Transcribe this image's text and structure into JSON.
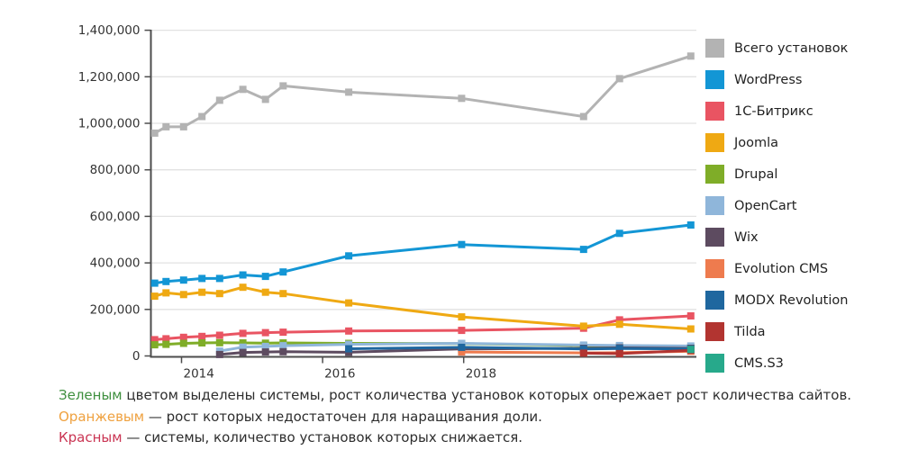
{
  "chart_data": {
    "type": "line",
    "title": "",
    "xlabel": "",
    "ylabel": "",
    "y_max": 1400000,
    "y_tick_values": [
      0,
      200000,
      400000,
      600000,
      800000,
      1000000,
      1200000,
      1400000
    ],
    "y_tick_labels": [
      "0",
      "200,000",
      "400,000",
      "600,000",
      "800,000",
      "1,000,000",
      "1,200,000",
      "1,400,000"
    ],
    "x_tick_years": [
      2014,
      2016,
      2018
    ],
    "x_tick_labels": [
      "2014",
      "2016",
      "2018"
    ],
    "x_years": [
      2013.62,
      2013.78,
      2014.03,
      2014.29,
      2014.54,
      2014.87,
      2015.19,
      2015.44,
      2016.37,
      2017.97,
      2019.7,
      2020.21,
      2021.22
    ],
    "grid": "horizontal",
    "legend_position": "right",
    "series": [
      {
        "label": "Всего установок",
        "color": "#b3b3b3",
        "start_index": 0,
        "values": [
          958000,
          985000,
          985000,
          1029000,
          1099000,
          1146000,
          1103000,
          1161000,
          1134000,
          1107000,
          1029000,
          1192000,
          1289000
        ]
      },
      {
        "label": "WordPress",
        "color": "#1396d5",
        "start_index": 0,
        "values": [
          313000,
          320000,
          326000,
          333000,
          333000,
          348000,
          342000,
          361000,
          430000,
          479000,
          458000,
          527000,
          563000
        ]
      },
      {
        "label": "1С-Битрикс",
        "color": "#e95462",
        "start_index": 0,
        "values": [
          70000,
          74000,
          80000,
          84000,
          89000,
          97000,
          100000,
          102000,
          107000,
          110000,
          119000,
          155000,
          172000
        ]
      },
      {
        "label": "Joomla",
        "color": "#efa913",
        "start_index": 0,
        "values": [
          257000,
          271000,
          264000,
          274000,
          268000,
          295000,
          274000,
          268000,
          228000,
          168000,
          128000,
          136000,
          116000
        ]
      },
      {
        "label": "Drupal",
        "color": "#7fad28",
        "start_index": 0,
        "values": [
          48000,
          50000,
          54000,
          56000,
          57000,
          56000,
          55000,
          56000,
          54000,
          53000,
          45000,
          42000,
          36000
        ]
      },
      {
        "label": "OpenCart",
        "color": "#8fb6da",
        "start_index": 4,
        "values": [
          21000,
          38000,
          41000,
          44000,
          50000,
          54000,
          47000,
          45000,
          43000
        ]
      },
      {
        "label": "Wix",
        "color": "#5d4b60",
        "start_index": 4,
        "values": [
          6000,
          15000,
          17000,
          18000,
          16000,
          30000,
          33000,
          35000,
          33000
        ]
      },
      {
        "label": "Evolution CMS",
        "color": "#ee7b4e",
        "start_index": 9,
        "values": [
          17000,
          13000,
          14000,
          20000
        ]
      },
      {
        "label": "MODX Revolution",
        "color": "#1f679f",
        "start_index": 8,
        "values": [
          31000,
          37000,
          30000,
          32000,
          30000
        ]
      },
      {
        "label": "Tilda",
        "color": "#b23430",
        "start_index": 10,
        "values": [
          12000,
          10000,
          24000
        ]
      },
      {
        "label": "CMS.S3",
        "color": "#27a98b",
        "start_index": 12,
        "values": [
          28000
        ]
      }
    ]
  },
  "notes": [
    {
      "keyword": "Зеленым",
      "color": "#3e8f3e",
      "text": " цветом выделены системы, рост количества установок которых опережает рост количества сайтов."
    },
    {
      "keyword": "Оранжевым",
      "color": "#efa13f",
      "text": " — рост которых недостаточен для наращивания доли."
    },
    {
      "keyword": "Красным",
      "color": "#ca3553",
      "text": " — системы, количество установок которых снижается."
    }
  ]
}
